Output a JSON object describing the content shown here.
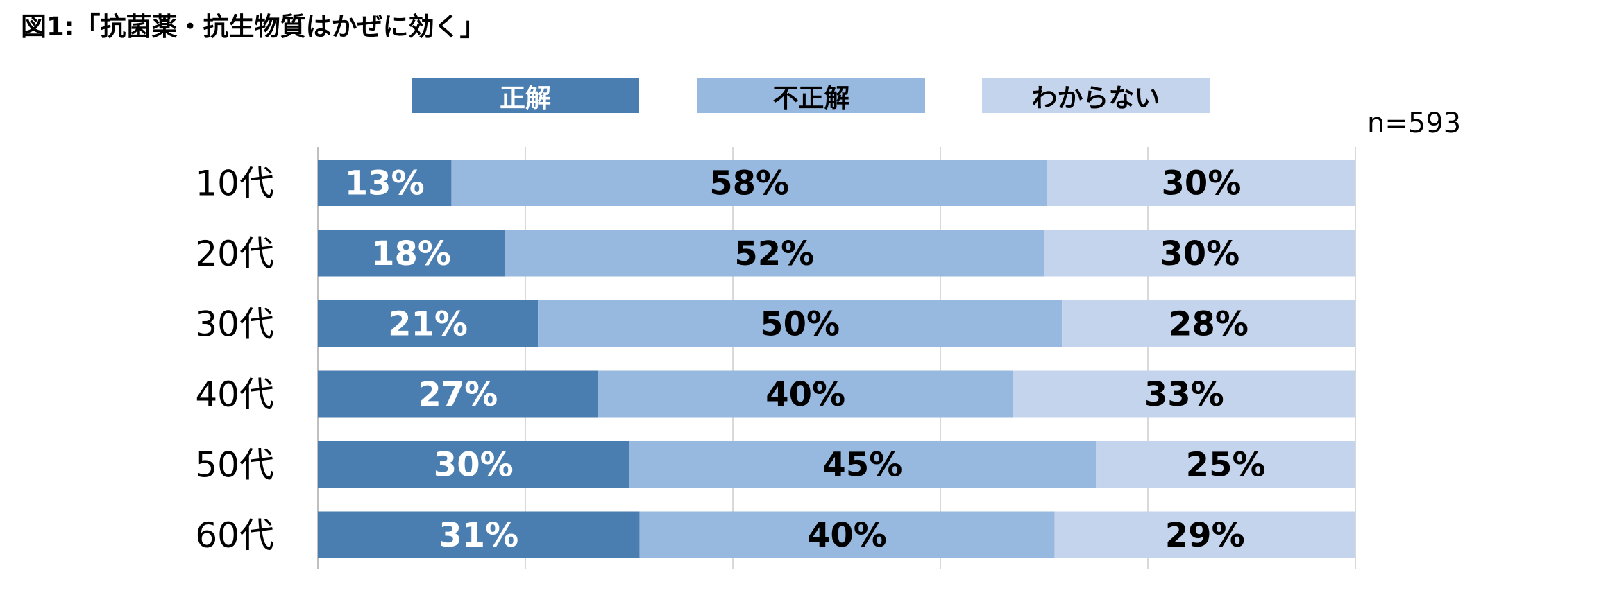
{
  "title": "図1:「抗菌薬・抗生物質はかぜに効く」",
  "note": "n=593",
  "colors": {
    "series1": "#4a7eb0",
    "series2": "#97b8df",
    "series3": "#c3d4ec",
    "grid": "#d9d9d9",
    "axis": "#bfbfbf"
  },
  "chart_data": {
    "type": "bar",
    "orientation": "horizontal",
    "stacked": true,
    "percent_stacked": true,
    "categories": [
      "10代",
      "20代",
      "30代",
      "40代",
      "50代",
      "60代"
    ],
    "series": [
      {
        "name": "正解",
        "values": [
          13,
          18,
          21,
          27,
          30,
          31
        ],
        "labels": [
          "13%",
          "18%",
          "21%",
          "27%",
          "30%",
          "31%"
        ]
      },
      {
        "name": "不正解",
        "values": [
          58,
          52,
          50,
          40,
          45,
          40
        ],
        "labels": [
          "58%",
          "52%",
          "50%",
          "40%",
          "45%",
          "40%"
        ]
      },
      {
        "name": "わからない",
        "values": [
          30,
          30,
          28,
          33,
          25,
          29
        ],
        "labels": [
          "30%",
          "30%",
          "28%",
          "33%",
          "25%",
          "29%"
        ]
      }
    ],
    "xlim": [
      0,
      100
    ],
    "grid": true,
    "legend": "top-center"
  }
}
